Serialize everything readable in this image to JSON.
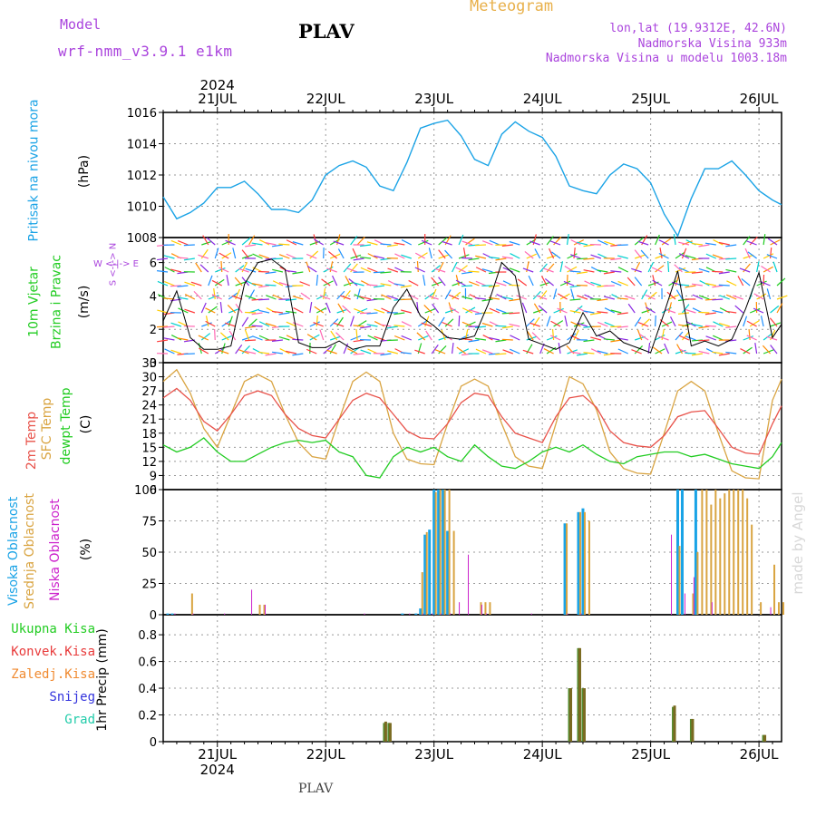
{
  "header": {
    "model_label": "Model",
    "model_name": "wrf-nmm_v3.9.1 e1km",
    "station": "PLAV",
    "title": "Meteogram",
    "lonlat": "lon,lat (19.9312E, 42.6N)",
    "elevation": "Nadmorska Visina 933m",
    "model_elevation": "Nadmorska Visina u modelu 1003.18m",
    "watermark": "made by Angel",
    "footer_station": "PLAV"
  },
  "colors": {
    "pressure": "#1aa3e6",
    "t2m": "#e8524a",
    "tsfc": "#d9a441",
    "dewpoint": "#22cc22",
    "wind_speed": "#000000",
    "high_cloud": "#19a3e6",
    "mid_cloud": "#d9a441",
    "low_cloud": "#cc22cc",
    "total_precip": "#22cc22",
    "conv_precip": "#e83a3a",
    "strat_precip": "#f08a30",
    "snow": "#3333dd",
    "graupel": "#22ccaa",
    "header_purple": "#aa44dd",
    "title_orange": "#e8b04a"
  },
  "time_axis": {
    "top_year": "2024",
    "bottom_year": "2024",
    "days": [
      "21JUL",
      "22JUL",
      "23JUL",
      "24JUL",
      "25JUL",
      "26JUL"
    ],
    "start_hour": 0,
    "end_hour": 137
  },
  "chart_data": [
    {
      "type": "line",
      "panel": "pressure",
      "ylabel_main": "Pritisak na nivou mora",
      "unit": "(hPa)",
      "ylim": [
        1008,
        1016
      ],
      "yticks": [
        "1008",
        "1010",
        "1012",
        "1014",
        "1016"
      ],
      "grid": true,
      "series": [
        {
          "name": "Pritisak na nivou mora",
          "x": [
            0,
            3,
            6,
            9,
            12,
            15,
            18,
            21,
            24,
            27,
            30,
            33,
            36,
            39,
            42,
            45,
            48,
            51,
            54,
            57,
            60,
            63,
            66,
            69,
            72,
            75,
            78,
            81,
            84,
            87,
            90,
            93,
            96,
            99,
            102,
            105,
            108,
            111,
            114,
            117,
            120,
            123,
            126,
            129,
            132,
            135,
            137
          ],
          "values": [
            1010.6,
            1009.2,
            1009.6,
            1010.2,
            1011.2,
            1011.2,
            1011.6,
            1010.8,
            1009.8,
            1009.8,
            1009.6,
            1010.4,
            1012.0,
            1012.6,
            1012.9,
            1012.5,
            1011.3,
            1011.0,
            1012.8,
            1015.0,
            1015.3,
            1015.5,
            1014.5,
            1013.0,
            1012.6,
            1014.6,
            1015.4,
            1014.8,
            1014.4,
            1013.2,
            1011.3,
            1011.0,
            1010.8,
            1012.0,
            1012.7,
            1012.4,
            1011.5,
            1009.5,
            1008.1,
            1010.5,
            1012.4,
            1012.4,
            1012.9,
            1012.0,
            1011.0,
            1010.4,
            1010.1
          ]
        }
      ]
    },
    {
      "type": "line",
      "panel": "wind",
      "ylabel_main": "10m Vjetar",
      "ylabel_sub": "Brzina i Pravac",
      "unit": "(m/s)",
      "compass": "W <-|-> E",
      "compass_ns": "S <-|-> N",
      "ylim": [
        0,
        7.5
      ],
      "yticks": [
        "0",
        "2",
        "4",
        "6"
      ],
      "grid": true,
      "series": [
        {
          "name": "10m Vjetar",
          "x": [
            0,
            3,
            6,
            9,
            12,
            15,
            18,
            21,
            24,
            27,
            30,
            33,
            36,
            39,
            42,
            45,
            48,
            51,
            54,
            57,
            60,
            63,
            66,
            69,
            72,
            75,
            78,
            81,
            84,
            87,
            90,
            93,
            96,
            99,
            102,
            105,
            108,
            111,
            114,
            117,
            120,
            123,
            126,
            129,
            132,
            135,
            137
          ],
          "values": [
            2.5,
            4.3,
            1.5,
            0.8,
            0.8,
            1.0,
            4.7,
            6.0,
            6.2,
            5.6,
            1.2,
            0.9,
            0.9,
            1.3,
            0.8,
            1.0,
            1.0,
            3.3,
            4.4,
            2.8,
            2.2,
            1.5,
            1.4,
            1.6,
            3.5,
            6.0,
            5.2,
            1.4,
            1.1,
            0.8,
            1.2,
            3.0,
            1.6,
            1.9,
            1.2,
            0.9,
            0.6,
            3.0,
            5.5,
            1.0,
            1.3,
            1.0,
            1.4,
            3.2,
            5.4,
            1.5,
            2.3
          ]
        }
      ],
      "wind_barbs": "color-coded arrows by hour"
    },
    {
      "type": "line",
      "panel": "temperature",
      "ylabels": [
        "2m Temp",
        "SFC Temp",
        "dewpt Temp"
      ],
      "unit": "(C)",
      "ylim": [
        6,
        33
      ],
      "yticks": [
        "6",
        "9",
        "12",
        "15",
        "18",
        "21",
        "24",
        "27",
        "30",
        "33"
      ],
      "grid": true,
      "x": [
        0,
        3,
        6,
        9,
        12,
        15,
        18,
        21,
        24,
        27,
        30,
        33,
        36,
        39,
        42,
        45,
        48,
        51,
        54,
        57,
        60,
        63,
        66,
        69,
        72,
        75,
        78,
        81,
        84,
        87,
        90,
        93,
        96,
        99,
        102,
        105,
        108,
        111,
        114,
        117,
        120,
        123,
        126,
        129,
        132,
        135,
        137
      ],
      "series": [
        {
          "name": "2m Temp",
          "values": [
            25.5,
            27.5,
            25.0,
            20.5,
            18.5,
            22.0,
            26.0,
            27.0,
            26.0,
            22.0,
            19.0,
            17.5,
            17.0,
            21.0,
            25.0,
            26.5,
            25.5,
            22.0,
            18.5,
            17.0,
            16.8,
            20.0,
            24.5,
            26.5,
            26.0,
            21.5,
            18.0,
            17.0,
            16.0,
            21.5,
            25.5,
            26.0,
            23.5,
            18.5,
            16.0,
            15.3,
            15.0,
            17.5,
            21.5,
            22.5,
            22.8,
            19.0,
            15.0,
            13.8,
            13.5,
            20.0,
            23.8
          ]
        },
        {
          "name": "SFC Temp",
          "values": [
            29.0,
            31.5,
            26.5,
            19.0,
            15.0,
            22.0,
            29.0,
            30.5,
            29.0,
            22.0,
            16.0,
            13.0,
            12.5,
            21.0,
            29.0,
            31.0,
            29.0,
            18.0,
            12.5,
            11.5,
            11.3,
            20.0,
            28.0,
            29.5,
            28.0,
            20.0,
            13.0,
            11.0,
            10.5,
            20.0,
            30.0,
            28.5,
            23.0,
            14.0,
            10.5,
            9.5,
            9.3,
            18.0,
            27.0,
            29.0,
            27.0,
            18.0,
            10.0,
            8.5,
            8.3,
            25.0,
            29.5
          ]
        },
        {
          "name": "dewpt Temp",
          "values": [
            15.5,
            14.0,
            15.0,
            17.0,
            14.0,
            12.0,
            12.0,
            13.5,
            15.0,
            16.0,
            16.5,
            16.0,
            16.5,
            14.0,
            13.0,
            9.0,
            8.5,
            13.0,
            15.0,
            14.0,
            15.0,
            13.0,
            12.0,
            15.5,
            13.0,
            11.0,
            10.5,
            12.0,
            14.0,
            15.0,
            14.0,
            15.5,
            13.5,
            12.0,
            11.5,
            13.0,
            13.5,
            14.0,
            14.0,
            13.0,
            13.5,
            12.5,
            11.5,
            11.0,
            10.5,
            13.0,
            16.0
          ]
        }
      ]
    },
    {
      "type": "bar",
      "panel": "cloud",
      "ylabels": [
        "Visoka Oblacnost",
        "Srednja Oblacnost",
        "Niska Oblacnost"
      ],
      "unit": "(%)",
      "ylim": [
        0,
        100
      ],
      "yticks": [
        "0",
        "25",
        "50",
        "75",
        "100"
      ],
      "grid": true,
      "series": [
        {
          "name": "Visoka Oblacnost",
          "x": [
            1,
            2,
            53,
            56,
            57,
            58,
            59,
            60,
            61,
            62,
            63,
            89,
            92,
            93,
            114,
            115,
            118
          ],
          "values": [
            1,
            1,
            1,
            1,
            5,
            64,
            68,
            100,
            100,
            100,
            67,
            73,
            82,
            85,
            100,
            100,
            100
          ]
        },
        {
          "name": "Srednja Oblacnost",
          "x": [
            6,
            21,
            22,
            57,
            58,
            60,
            61,
            62,
            63,
            64,
            70,
            71,
            72,
            89,
            92,
            93,
            94,
            114,
            117,
            118,
            119,
            120,
            121,
            122,
            123,
            124,
            125,
            126,
            127,
            128,
            129,
            130,
            132,
            135,
            136,
            137
          ],
          "values": [
            17,
            8,
            8,
            34,
            66,
            98,
            100,
            100,
            100,
            67,
            10,
            10,
            10,
            73,
            82,
            82,
            75,
            55,
            17,
            50,
            100,
            100,
            88,
            100,
            93,
            97,
            100,
            100,
            100,
            100,
            93,
            72,
            10,
            40,
            10,
            10
          ]
        },
        {
          "name": "Niska Oblacnost",
          "x": [
            3,
            7,
            14,
            20,
            23,
            45,
            55,
            58,
            60,
            62,
            64,
            66,
            68,
            71,
            72,
            82,
            90,
            93,
            113,
            116,
            118,
            122,
            135
          ],
          "values": [
            1,
            1,
            1,
            20,
            8,
            1,
            1,
            1,
            1,
            1,
            1,
            10,
            48,
            8,
            1,
            1,
            1,
            1,
            64,
            17,
            30,
            10,
            6
          ]
        }
      ]
    },
    {
      "type": "bar",
      "panel": "precip",
      "ylabels": [
        "Ukupna Kisa",
        "Konvek.Kisa",
        "Zaledj.Kisa",
        "Snijeg",
        "Grad"
      ],
      "unit": "1hr Precip (mm)",
      "ylim": [
        0,
        0.95
      ],
      "yticks": [
        "0",
        "0.2",
        "0.4",
        "0.6",
        "0.8"
      ],
      "grid": true,
      "series": [
        {
          "name": "Ukupna Kisa",
          "x": [
            48,
            49,
            50,
            90,
            91,
            92,
            93,
            113,
            114,
            116,
            117,
            120,
            121,
            122,
            133
          ],
          "values": [
            0.0,
            0.14,
            0.14,
            0.4,
            0.0,
            0.7,
            0.4,
            0.26,
            0.0,
            0.0,
            0.17,
            0.0,
            0.0,
            0.0,
            0.05
          ]
        },
        {
          "name": "Konvek.Kisa",
          "x": [
            48,
            49,
            50,
            90,
            92,
            93,
            113,
            117,
            133
          ],
          "values": [
            0.0,
            0.15,
            0.14,
            0.4,
            0.7,
            0.4,
            0.27,
            0.17,
            0.05
          ]
        }
      ]
    }
  ]
}
